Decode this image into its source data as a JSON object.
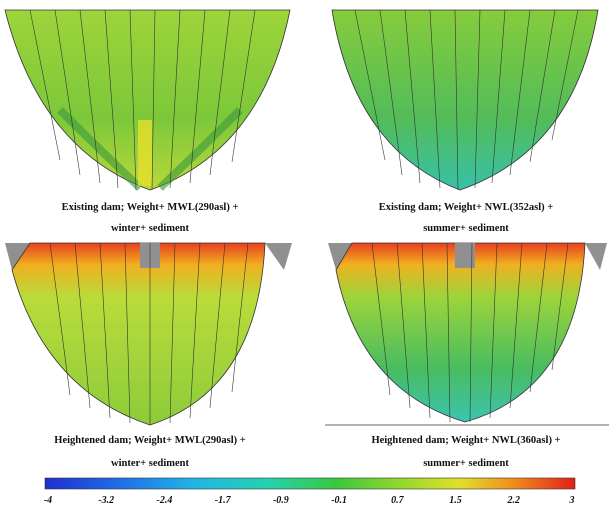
{
  "panels": [
    {
      "caption": [
        "Existing dam; Weight+ MWL(290asl) +",
        "winter+ sediment"
      ]
    },
    {
      "caption": [
        "Existing dam; Weight+ NWL(352asl) +",
        "summer+ sediment"
      ]
    },
    {
      "caption": [
        "Heightened dam; Weight+ MWL(290asl) +",
        "winter+ sediment"
      ]
    },
    {
      "caption": [
        "Heightened dam; Weight+ NWL(360asl) +",
        "summer+ sediment"
      ]
    }
  ],
  "colorbar": {
    "ticks": [
      -4,
      -3.2,
      -2.4,
      -1.7,
      -0.9,
      -0.1,
      0.7,
      1.5,
      2.2,
      3
    ]
  }
}
